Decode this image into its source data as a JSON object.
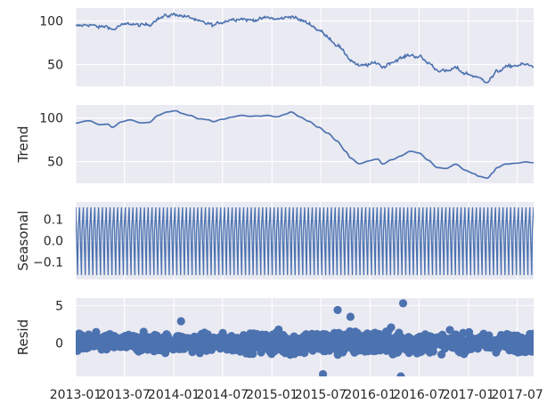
{
  "chart_data": [
    {
      "type": "line",
      "panel": "observed",
      "ylabel": "",
      "ylim": [
        25,
        115
      ],
      "yticks": [
        {
          "v": 100,
          "label": "100"
        },
        {
          "v": 50,
          "label": "50"
        }
      ],
      "color": "#4c72b0",
      "grid": true,
      "keypoints": [
        [
          0,
          94
        ],
        [
          0.03,
          96
        ],
        [
          0.05,
          93
        ],
        [
          0.07,
          94
        ],
        [
          0.08,
          90
        ],
        [
          0.1,
          95
        ],
        [
          0.12,
          97
        ],
        [
          0.14,
          95
        ],
        [
          0.16,
          96
        ],
        [
          0.18,
          103
        ],
        [
          0.2,
          106
        ],
        [
          0.22,
          108
        ],
        [
          0.23,
          106
        ],
        [
          0.25,
          104
        ],
        [
          0.27,
          99
        ],
        [
          0.29,
          97
        ],
        [
          0.3,
          95
        ],
        [
          0.32,
          99
        ],
        [
          0.34,
          102
        ],
        [
          0.36,
          103
        ],
        [
          0.38,
          101
        ],
        [
          0.4,
          102
        ],
        [
          0.42,
          104
        ],
        [
          0.44,
          102
        ],
        [
          0.46,
          104
        ],
        [
          0.47,
          106
        ],
        [
          0.49,
          101
        ],
        [
          0.51,
          97
        ],
        [
          0.53,
          90
        ],
        [
          0.55,
          82
        ],
        [
          0.57,
          73
        ],
        [
          0.59,
          62
        ],
        [
          0.6,
          55
        ],
        [
          0.62,
          48
        ],
        [
          0.64,
          50
        ],
        [
          0.66,
          52
        ],
        [
          0.67,
          47
        ],
        [
          0.69,
          53
        ],
        [
          0.71,
          57
        ],
        [
          0.73,
          61
        ],
        [
          0.75,
          59
        ],
        [
          0.77,
          52
        ],
        [
          0.79,
          44
        ],
        [
          0.81,
          42
        ],
        [
          0.83,
          46
        ],
        [
          0.85,
          40
        ],
        [
          0.87,
          37
        ],
        [
          0.88,
          34
        ],
        [
          0.9,
          31
        ],
        [
          0.91,
          36
        ],
        [
          0.92,
          42
        ],
        [
          0.94,
          47
        ],
        [
          0.96,
          49
        ],
        [
          0.98,
          50
        ],
        [
          1,
          48
        ]
      ]
    },
    {
      "type": "line",
      "panel": "trend",
      "ylabel": "Trend",
      "ylim": [
        25,
        115
      ],
      "yticks": [
        {
          "v": 100,
          "label": "100"
        },
        {
          "v": 50,
          "label": "50"
        }
      ],
      "color": "#4c72b0",
      "grid": true
    },
    {
      "type": "line",
      "panel": "seasonal",
      "ylabel": "Seasonal",
      "ylim": [
        -0.18,
        0.18
      ],
      "yticks": [
        {
          "v": 0.1,
          "label": "0.1"
        },
        {
          "v": 0.0,
          "label": "0.0"
        },
        {
          "v": -0.1,
          "label": "−0.1"
        }
      ],
      "amplitude_max": 0.155,
      "amplitude_min": -0.16,
      "cycles": 120,
      "color": "#4c72b0",
      "grid": true
    },
    {
      "type": "scatter",
      "panel": "resid",
      "ylabel": "Resid",
      "ylim": [
        -4.5,
        6
      ],
      "yticks": [
        {
          "v": 5,
          "label": "5"
        },
        {
          "v": 0,
          "label": "0"
        }
      ],
      "color": "#4c72b0",
      "grid": true,
      "notable_points": [
        [
          0.572,
          4.4
        ],
        [
          0.715,
          5.3
        ],
        [
          0.54,
          -4.2
        ],
        [
          0.71,
          -4.5
        ],
        [
          0.6,
          3.5
        ],
        [
          0.23,
          2.9
        ]
      ]
    }
  ],
  "x_axis": {
    "range": [
      "2013-01-01",
      "2017-08-31"
    ],
    "ticks": [
      {
        "date": "2013-01-01",
        "label": "2013-01"
      },
      {
        "date": "2013-07-01",
        "label": "2013-07"
      },
      {
        "date": "2014-01-01",
        "label": "2014-01"
      },
      {
        "date": "2014-07-01",
        "label": "2014-07"
      },
      {
        "date": "2015-01-01",
        "label": "2015-01"
      },
      {
        "date": "2015-07-01",
        "label": "2015-07"
      },
      {
        "date": "2016-01-01",
        "label": "2016-01"
      },
      {
        "date": "2016-07-01",
        "label": "2016-07"
      },
      {
        "date": "2017-01-01",
        "label": "2017-01"
      },
      {
        "date": "2017-07-01",
        "label": "2017-07"
      }
    ]
  },
  "style": {
    "panel_bg": "#eaeaf2",
    "grid_color": "#ffffff",
    "text_color": "#262626"
  }
}
